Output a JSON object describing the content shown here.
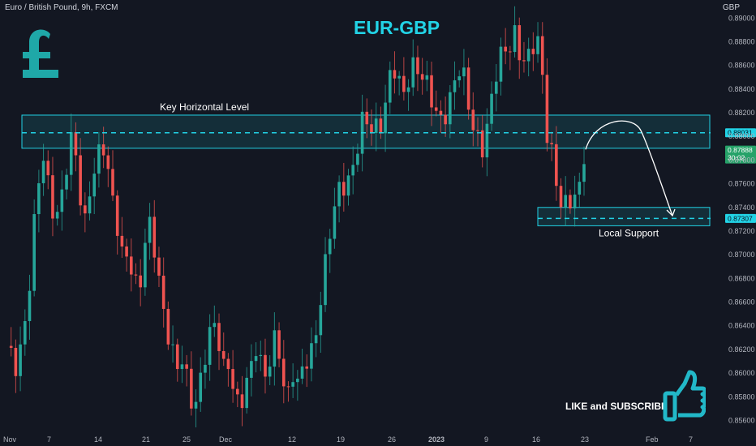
{
  "header": {
    "symbol_line": "Euro / British Pound, 9h, FXCM",
    "currency": "GBP"
  },
  "title": "EUR-GBP",
  "cta_text": "LIKE and SUBSCRIBE",
  "icons": [
    "pound-sign-icon",
    "thumbs-up-icon"
  ],
  "colors": {
    "accent": "#22d3e6",
    "bullish": "#26a69a",
    "bearish": "#ef5350",
    "background": "#131722",
    "price_tag": "#26a269"
  },
  "chart_data": {
    "type": "candlestick",
    "y_axis": {
      "range": [
        0.8548,
        0.8905
      ],
      "ticks": [
        "0.89000",
        "0.88800",
        "0.88600",
        "0.88400",
        "0.88200",
        "0.88000",
        "0.87800",
        "0.87600",
        "0.87400",
        "0.87200",
        "0.87000",
        "0.86800",
        "0.86600",
        "0.86400",
        "0.86200",
        "0.86000",
        "0.85800",
        "0.85600"
      ],
      "side": "right"
    },
    "x_axis": {
      "tick_labels": [
        "Nov",
        "7",
        "14",
        "21",
        "25",
        "Dec",
        "12",
        "19",
        "26",
        "2023",
        "9",
        "16",
        "23",
        "Feb",
        "7"
      ]
    },
    "grid": false,
    "price_path": [
      0.8623,
      0.8608,
      0.8598,
      0.8628,
      0.8662,
      0.8721,
      0.8762,
      0.8779,
      0.8748,
      0.8731,
      0.8742,
      0.8771,
      0.8801,
      0.8782,
      0.8741,
      0.872,
      0.8773,
      0.878,
      0.8802,
      0.877,
      0.8741,
      0.8721,
      0.8698,
      0.8709,
      0.8681,
      0.8662,
      0.8702,
      0.8723,
      0.8708,
      0.8677,
      0.8644,
      0.8621,
      0.8596,
      0.8612,
      0.8598,
      0.8581,
      0.8579,
      0.8602,
      0.862,
      0.8641,
      0.8632,
      0.8609,
      0.8612,
      0.8581,
      0.856,
      0.8587,
      0.8602,
      0.8631,
      0.8612,
      0.8593,
      0.8613,
      0.8628,
      0.86,
      0.8582,
      0.8606,
      0.859,
      0.8598,
      0.8611,
      0.862,
      0.866,
      0.8691,
      0.8718,
      0.8738,
      0.8752,
      0.876,
      0.8771,
      0.8792,
      0.8812,
      0.8808,
      0.8801,
      0.8806,
      0.8818,
      0.8849,
      0.8862,
      0.8841,
      0.8831,
      0.885,
      0.8866,
      0.8861,
      0.8848,
      0.8831,
      0.8814,
      0.8812,
      0.8825,
      0.8841,
      0.8859,
      0.8852,
      0.8827,
      0.8806,
      0.8801,
      0.8796,
      0.8817,
      0.8842,
      0.8859,
      0.8871,
      0.888,
      0.8892,
      0.887,
      0.8858,
      0.8865,
      0.8885,
      0.8862,
      0.8809,
      0.8786,
      0.8752,
      0.8731,
      0.8742,
      0.8752,
      0.8758,
      0.8789
    ],
    "candle_count": 126,
    "annotations": [
      {
        "label": "Key Horizontal Level",
        "kind": "zone",
        "y_range": [
          0.879,
          0.8818
        ],
        "x_span": "full"
      },
      {
        "label": "Local Support",
        "kind": "zone",
        "y_range": [
          0.87245,
          0.874
        ],
        "x_span": "right"
      },
      {
        "label": "",
        "kind": "dashed-line",
        "value": 0.88031
      },
      {
        "label": "",
        "kind": "dashed-line",
        "value": 0.87307
      },
      {
        "label": "",
        "kind": "projected-path",
        "from": 0.8789,
        "peak": 0.8805,
        "to": 0.8733
      }
    ],
    "price_tags": [
      {
        "value": "0.88031",
        "style": "cyan"
      },
      {
        "value": "0.87888",
        "sub": "30:02",
        "style": "green"
      },
      {
        "value": "0.87307",
        "style": "cyan"
      }
    ]
  }
}
